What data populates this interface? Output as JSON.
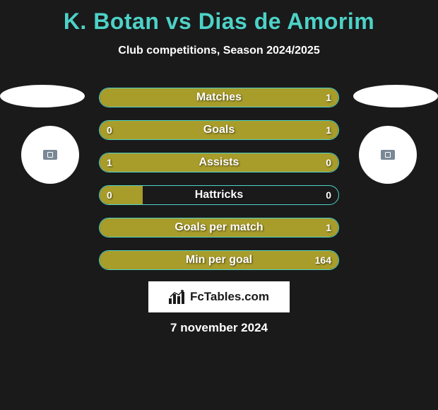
{
  "title": "K. Botan vs Dias de Amorim",
  "subtitle": "Club competitions, Season 2024/2025",
  "date": "7 november 2024",
  "fctables_label": "FcTables.com",
  "colors": {
    "background": "#1a1a1a",
    "accent": "#4dd2c8",
    "bar_fill": "#a89c2a",
    "text": "#ffffff"
  },
  "bars": [
    {
      "label": "Matches",
      "left": "",
      "right": "1",
      "left_pct": 50,
      "right_pct": 50,
      "full": true
    },
    {
      "label": "Goals",
      "left": "0",
      "right": "1",
      "left_pct": 18,
      "right_pct": 82,
      "full": false
    },
    {
      "label": "Assists",
      "left": "1",
      "right": "0",
      "left_pct": 82,
      "right_pct": 18,
      "full": false
    },
    {
      "label": "Hattricks",
      "left": "0",
      "right": "0",
      "left_pct": 18,
      "right_pct": 0,
      "full": false
    },
    {
      "label": "Goals per match",
      "left": "",
      "right": "1",
      "left_pct": 50,
      "right_pct": 50,
      "full": true
    },
    {
      "label": "Min per goal",
      "left": "",
      "right": "164",
      "left_pct": 50,
      "right_pct": 50,
      "full": true
    }
  ]
}
